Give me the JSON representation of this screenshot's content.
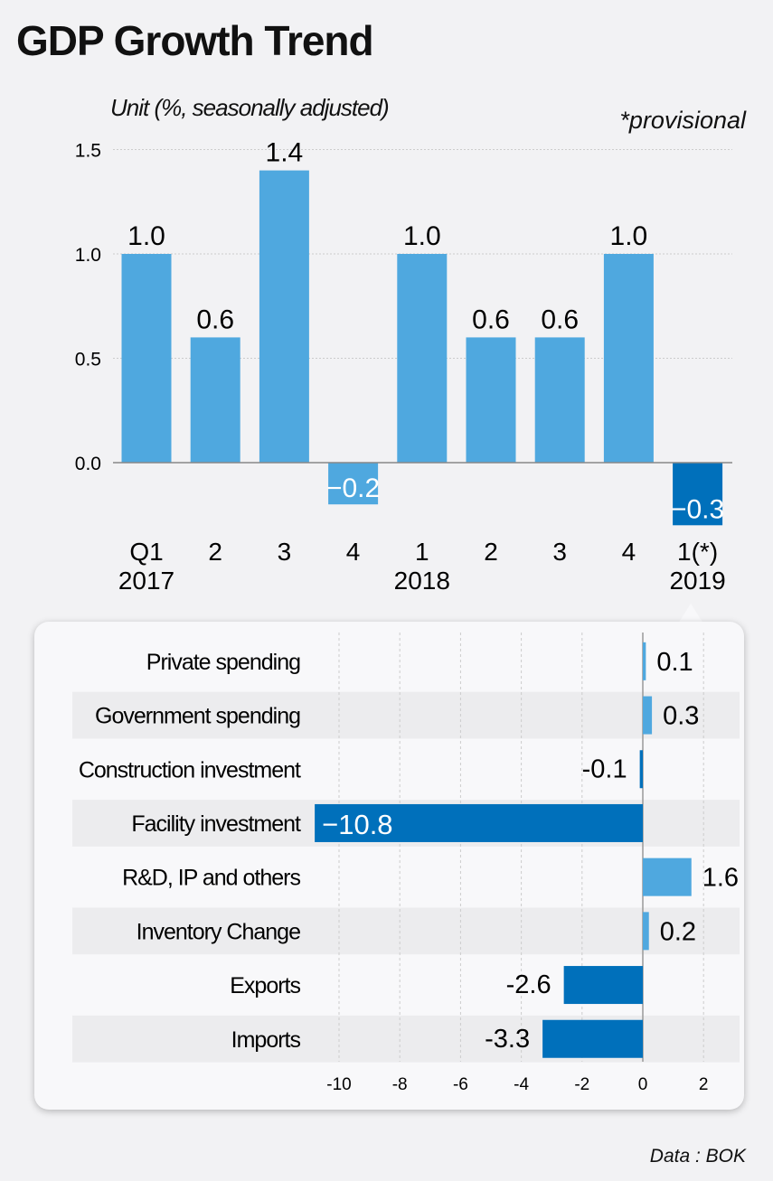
{
  "title": "GDP Growth Trend",
  "unit": "Unit (%, seasonally adjusted)",
  "note": "*provisional",
  "source": "Data : BOK",
  "colors": {
    "light": "#4fa8df",
    "dark": "#0070bb",
    "background": "#f2f2f4"
  },
  "chart_data": [
    {
      "type": "bar",
      "yticks": [
        "0.0",
        "0.5",
        "1.0",
        "1.5"
      ],
      "ylim": [
        -0.3,
        1.5
      ],
      "categories": [
        "Q1",
        "2",
        "3",
        "4",
        "1",
        "2",
        "3",
        "4",
        "1(*)"
      ],
      "year_labels": [
        "2017",
        "",
        "",
        "",
        "2018",
        "",
        "",
        "",
        "2019"
      ],
      "values": [
        1.0,
        0.6,
        1.4,
        -0.2,
        1.0,
        0.6,
        0.6,
        1.0,
        -0.3
      ],
      "labels": [
        "1.0",
        "0.6",
        "1.4",
        "−0.2",
        "1.0",
        "0.6",
        "0.6",
        "1.0",
        "−0.3"
      ],
      "highlight_index": 8,
      "grid": true
    },
    {
      "type": "bar",
      "orientation": "horizontal",
      "categories": [
        "Private spending",
        "Government spending",
        "Construction investment",
        "Facility investment",
        "R&D, IP and others",
        "Inventory Change",
        "Exports",
        "Imports"
      ],
      "values": [
        0.1,
        0.3,
        -0.1,
        -10.8,
        1.6,
        0.2,
        -2.6,
        -3.3
      ],
      "labels": [
        "0.1",
        "0.3",
        "-0.1",
        "−10.8",
        "1.6",
        "0.2",
        "-2.6",
        "-3.3"
      ],
      "xticks": [
        "-10",
        "-8",
        "-6",
        "-4",
        "-2",
        "0",
        "2"
      ],
      "xlim": [
        -10.8,
        2
      ],
      "grid": true
    }
  ]
}
